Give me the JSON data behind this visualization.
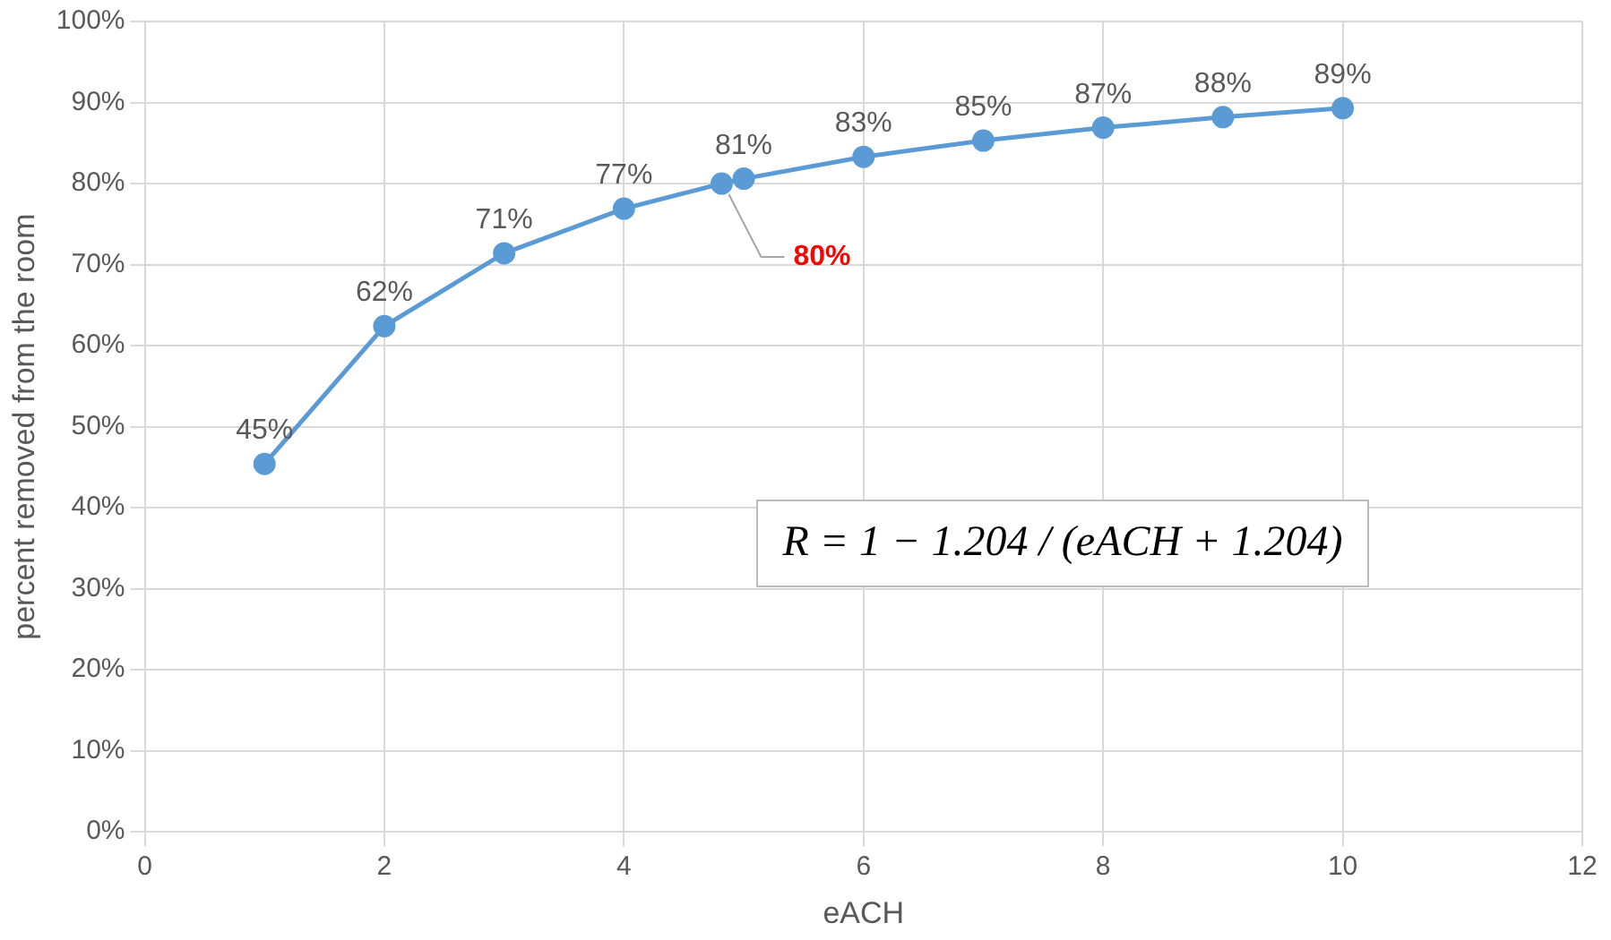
{
  "chart_data": {
    "type": "line",
    "xlabel": "eACH",
    "ylabel": "percent removed from the room",
    "x": [
      1,
      2,
      3,
      4,
      4.816,
      5,
      6,
      7,
      8,
      9,
      10
    ],
    "series": [
      {
        "color": "#5b9bd5",
        "values": [
          45.4,
          62.4,
          71.4,
          76.9,
          80.0,
          80.6,
          83.3,
          85.3,
          86.9,
          88.2,
          89.3
        ],
        "value_labels": [
          "45%",
          "62%",
          "71%",
          "77%",
          null,
          "81%",
          "83%",
          "85%",
          "87%",
          "88%",
          "89%"
        ]
      }
    ],
    "xlim": [
      0,
      12
    ],
    "xticks": [
      0,
      2,
      4,
      6,
      8,
      10,
      12
    ],
    "ylim": [
      0,
      100
    ],
    "yticks": [
      {
        "value": 0,
        "label": "0%"
      },
      {
        "value": 10,
        "label": "10%"
      },
      {
        "value": 20,
        "label": "20%"
      },
      {
        "value": 30,
        "label": "30%"
      },
      {
        "value": 40,
        "label": "40%"
      },
      {
        "value": 50,
        "label": "50%"
      },
      {
        "value": 60,
        "label": "60%"
      },
      {
        "value": 70,
        "label": "70%"
      },
      {
        "value": 80,
        "label": "80%"
      },
      {
        "value": 90,
        "label": "90%"
      },
      {
        "value": 100,
        "label": "100%"
      }
    ],
    "grid": true,
    "legend": false,
    "marker": "circle",
    "line_style": "solid",
    "annotations": [
      {
        "text": "80%",
        "x": 4.816,
        "y": 80.0
      },
      "R = 1 − 1.204 / (eACH + 1.204)"
    ]
  }
}
